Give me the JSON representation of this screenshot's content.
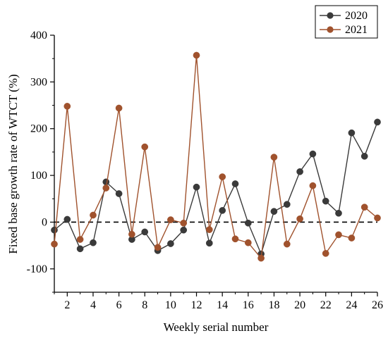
{
  "chart_data": {
    "type": "line",
    "xlabel": "Weekly serial number",
    "ylabel": "Fixed base growth rate of WTCT (%)",
    "xlim": [
      1,
      26
    ],
    "ylim": [
      -150,
      400
    ],
    "x_ticks": [
      2,
      4,
      6,
      8,
      10,
      12,
      14,
      16,
      18,
      20,
      22,
      24,
      26
    ],
    "y_ticks": [
      -100,
      0,
      100,
      200,
      300,
      400
    ],
    "reference_line": 0,
    "legend_position": "top-right",
    "grid": false,
    "x": [
      1,
      2,
      3,
      4,
      5,
      6,
      7,
      8,
      9,
      10,
      11,
      12,
      13,
      14,
      15,
      16,
      17,
      18,
      19,
      20,
      21,
      22,
      23,
      24,
      25,
      26
    ],
    "series": [
      {
        "name": "2020",
        "color": "#3a3a3a",
        "values": [
          -17,
          6,
          -57,
          -44,
          86,
          61,
          -37,
          -21,
          -61,
          -46,
          -17,
          75,
          -45,
          25,
          82,
          -2,
          -68,
          23,
          38,
          108,
          146,
          45,
          19,
          191,
          141,
          214
        ]
      },
      {
        "name": "2021",
        "color": "#a0522d",
        "values": [
          -47,
          248,
          -37,
          15,
          73,
          244,
          -26,
          161,
          -54,
          5,
          -2,
          357,
          -16,
          97,
          -36,
          -44,
          -77,
          139,
          -47,
          7,
          78,
          -67,
          -27,
          -34,
          32,
          9
        ]
      }
    ]
  }
}
